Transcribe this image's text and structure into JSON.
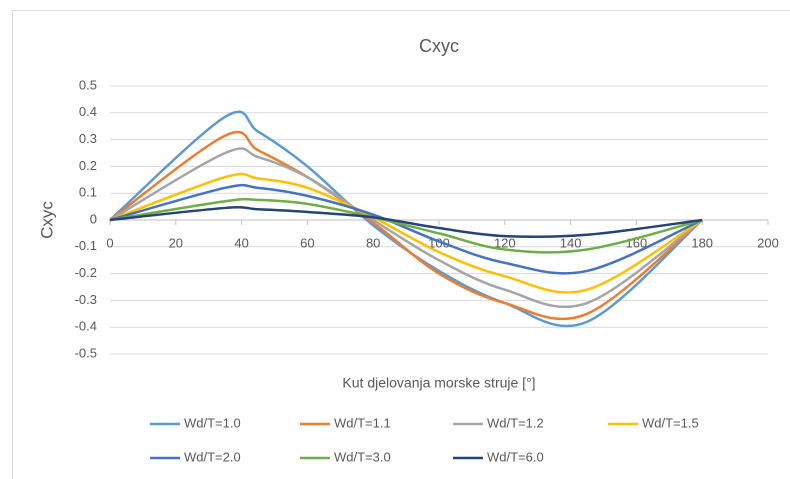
{
  "chart_data": {
    "type": "line",
    "title": "Cxyc",
    "x_label": "Kut djelovanja morske struje [°]",
    "y_label": "Cxyc",
    "x": [
      0,
      35,
      45,
      60,
      80,
      100,
      120,
      145,
      180
    ],
    "series": [
      {
        "name": "Wd/T=1.0",
        "color": "#5b9bd5",
        "values": [
          0,
          0.385,
          0.33,
          0.2,
          -0.02,
          -0.19,
          -0.31,
          -0.38,
          0
        ]
      },
      {
        "name": "Wd/T=1.1",
        "color": "#ed7d31",
        "values": [
          0,
          0.315,
          0.26,
          0.16,
          -0.01,
          -0.2,
          -0.31,
          -0.35,
          0
        ]
      },
      {
        "name": "Wd/T=1.2",
        "color": "#a5a5a5",
        "values": [
          0,
          0.25,
          0.235,
          0.16,
          0,
          -0.15,
          -0.26,
          -0.31,
          0
        ]
      },
      {
        "name": "Wd/T=1.5",
        "color": "#ffc000",
        "values": [
          0,
          0.16,
          0.155,
          0.12,
          0.01,
          -0.12,
          -0.21,
          -0.26,
          0
        ]
      },
      {
        "name": "Wd/T=2.0",
        "color": "#4472c4",
        "values": [
          0,
          0.12,
          0.12,
          0.09,
          0.02,
          -0.08,
          -0.16,
          -0.19,
          0
        ]
      },
      {
        "name": "Wd/T=3.0",
        "color": "#70ad47",
        "values": [
          0,
          0.07,
          0.075,
          0.06,
          0.01,
          -0.05,
          -0.11,
          -0.11,
          0
        ]
      },
      {
        "name": "Wd/T=6.0",
        "color": "#264478",
        "values": [
          0,
          0.045,
          0.04,
          0.03,
          0.01,
          -0.03,
          -0.06,
          -0.055,
          0
        ]
      }
    ],
    "xlim": [
      0,
      200
    ],
    "xticks": [
      0,
      20,
      40,
      60,
      80,
      100,
      120,
      140,
      160,
      180,
      200
    ],
    "ylim": [
      -0.5,
      0.5
    ],
    "yticks": [
      -0.5,
      -0.4,
      -0.3,
      -0.2,
      -0.1,
      0,
      0.1,
      0.2,
      0.3,
      0.4,
      0.5
    ],
    "grid": true,
    "legend": "bottom"
  }
}
